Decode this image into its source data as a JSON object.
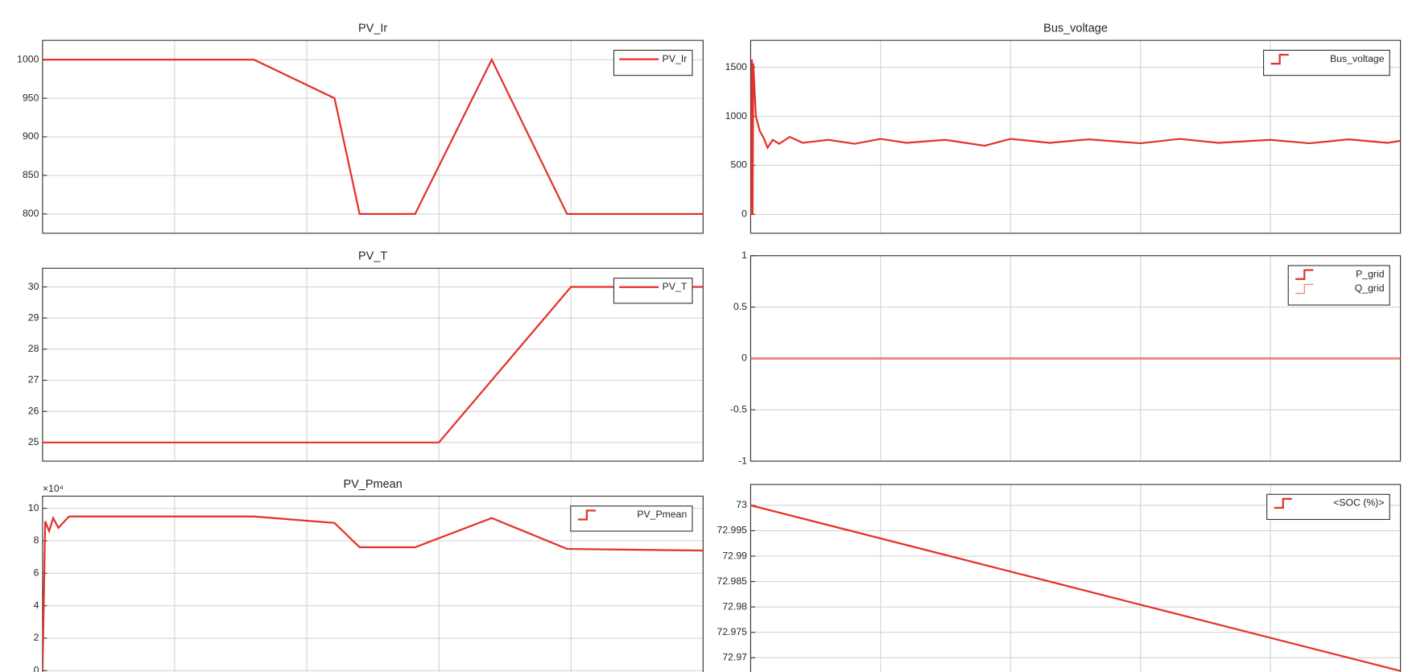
{
  "chart_data": [
    {
      "type": "line",
      "title": "PV_Ir",
      "xlim": [
        0,
        5
      ],
      "xticks": [
        0,
        1,
        2,
        3,
        4,
        5
      ],
      "ylim": [
        775,
        1025
      ],
      "yticks": [
        800,
        850,
        900,
        950,
        1000
      ],
      "grid": true,
      "legend": "northeast",
      "legend_icon": "line",
      "x": [
        0,
        1.6,
        2.21,
        2.4,
        2.82,
        3.4,
        3.97,
        5
      ],
      "series": [
        {
          "name": "PV_Ir",
          "color": "#e4312b",
          "values": [
            1000,
            1000,
            950,
            800,
            800,
            1000,
            800,
            800
          ]
        }
      ]
    },
    {
      "type": "line",
      "title": "PV_T",
      "xlim": [
        0,
        5
      ],
      "xticks": [
        0,
        1,
        2,
        3,
        4,
        5
      ],
      "ylim": [
        24.4,
        30.6
      ],
      "yticks": [
        25,
        26,
        27,
        28,
        29,
        30
      ],
      "grid": true,
      "legend": "northeast",
      "legend_icon": "line",
      "x": [
        0,
        3,
        4,
        5
      ],
      "series": [
        {
          "name": "PV_T",
          "color": "#e4312b",
          "values": [
            25,
            25,
            30,
            30
          ]
        }
      ]
    },
    {
      "type": "line",
      "title": "PV_Pmean",
      "y_exponent": "×10⁴",
      "xlim": [
        0,
        5
      ],
      "xticks": [
        0,
        1,
        2,
        3,
        4,
        5
      ],
      "ylim": [
        -0.8,
        10.75
      ],
      "yticks": [
        0,
        2,
        4,
        6,
        8,
        10
      ],
      "grid": true,
      "legend": "northeast",
      "legend_icon": "step",
      "x": [
        0,
        0.02,
        0.05,
        0.08,
        0.12,
        0.2,
        1.0,
        1.6,
        2.21,
        2.4,
        2.82,
        3.4,
        3.97,
        5
      ],
      "series": [
        {
          "name": "PV_Pmean",
          "color": "#e4312b",
          "values": [
            0,
            9.2,
            8.6,
            9.4,
            8.8,
            9.5,
            9.5,
            9.5,
            9.1,
            7.6,
            7.6,
            9.4,
            7.5,
            7.4
          ]
        }
      ]
    },
    {
      "type": "line",
      "title": "Bus_voltage",
      "xlim": [
        0,
        5
      ],
      "xticks": [
        0,
        1,
        2,
        3,
        4,
        5
      ],
      "ylim": [
        -192,
        1774
      ],
      "yticks": [
        0,
        500,
        1000,
        1500
      ],
      "grid": true,
      "legend": "northeast",
      "legend_icon": "step",
      "x": [
        0,
        0.01,
        0.015,
        0.02,
        0.04,
        0.07,
        0.1,
        0.13,
        0.17,
        0.22,
        0.3,
        0.4,
        0.6,
        0.8,
        1.0,
        1.2,
        1.5,
        1.8,
        2.0,
        2.3,
        2.6,
        3.0,
        3.3,
        3.6,
        4.0,
        4.3,
        4.6,
        4.9,
        5
      ],
      "series": [
        {
          "name": "Bus_voltage",
          "color": "#e4312b",
          "values": [
            0,
            1580,
            0,
            1540,
            1000,
            850,
            780,
            680,
            760,
            720,
            790,
            730,
            760,
            720,
            770,
            730,
            760,
            700,
            770,
            730,
            765,
            725,
            770,
            730,
            760,
            725,
            765,
            730,
            750
          ]
        }
      ]
    },
    {
      "type": "line",
      "xlim": [
        0,
        5
      ],
      "xticks": [
        0,
        1,
        2,
        3,
        4,
        5
      ],
      "ylim": [
        -1,
        1
      ],
      "yticks": [
        -1,
        -0.5,
        0,
        0.5,
        1
      ],
      "grid": true,
      "legend": "northeast",
      "legend_icon": "step",
      "x": [
        0,
        5
      ],
      "series": [
        {
          "name": "P_grid",
          "color": "#e4312b",
          "values": [
            0,
            0
          ]
        },
        {
          "name": "Q_grid",
          "color": "#f08a80",
          "values": [
            0,
            0
          ]
        }
      ]
    },
    {
      "type": "line",
      "xlim": [
        0,
        5
      ],
      "xticks": [
        0,
        1,
        2,
        3,
        4,
        5
      ],
      "ylim": [
        72.9649,
        73.0041
      ],
      "yticks": [
        72.965,
        72.97,
        72.975,
        72.98,
        72.985,
        72.99,
        72.995,
        73
      ],
      "grid": true,
      "legend": "northeast",
      "legend_icon": "step",
      "x": [
        0,
        5
      ],
      "series": [
        {
          "name": "<SOC (%)>",
          "color": "#e4312b",
          "values": [
            73,
            72.9674
          ]
        }
      ]
    }
  ]
}
